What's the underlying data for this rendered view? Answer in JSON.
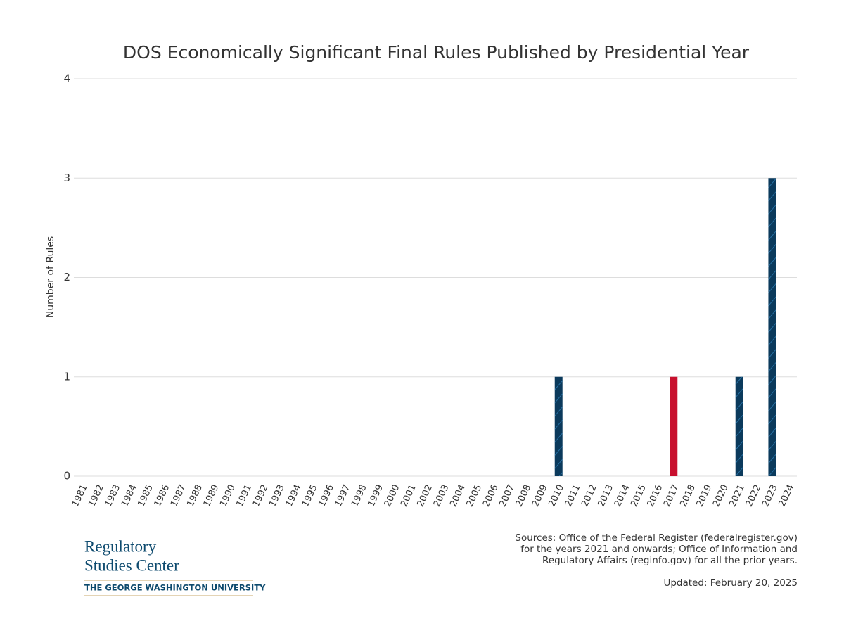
{
  "chart_data": {
    "type": "bar",
    "title": "DOS Economically Significant Final Rules Published by Presidential Year",
    "y_label": "Number of Rules",
    "categories": [
      "1981",
      "1982",
      "1983",
      "1984",
      "1985",
      "1986",
      "1987",
      "1988",
      "1989",
      "1990",
      "1991",
      "1992",
      "1993",
      "1994",
      "1995",
      "1996",
      "1997",
      "1998",
      "1999",
      "2000",
      "2001",
      "2002",
      "2003",
      "2004",
      "2005",
      "2006",
      "2007",
      "2008",
      "2009",
      "2010",
      "2011",
      "2012",
      "2013",
      "2014",
      "2015",
      "2016",
      "2017",
      "2018",
      "2019",
      "2020",
      "2021",
      "2022",
      "2023",
      "2024"
    ],
    "values": [
      0,
      0,
      0,
      0,
      0,
      0,
      0,
      0,
      0,
      0,
      0,
      0,
      0,
      0,
      0,
      0,
      0,
      0,
      0,
      0,
      0,
      0,
      0,
      0,
      0,
      0,
      0,
      0,
      0,
      1,
      0,
      0,
      0,
      0,
      0,
      0,
      1,
      0,
      0,
      0,
      1,
      0,
      3,
      0
    ],
    "colors": [
      "#0b3a5c",
      "#0b3a5c",
      "#0b3a5c",
      "#0b3a5c",
      "#c8102e",
      "#c8102e",
      "#c8102e",
      "#c8102e",
      "#0b3a5c",
      "#0b3a5c",
      "#0b3a5c",
      "#0b3a5c",
      "#0b3a5c",
      "#0b3a5c",
      "#0b3a5c",
      "#0b3a5c",
      "#0b3a5c",
      "#0b3a5c",
      "#0b3a5c",
      "#0b3a5c",
      "#c8102e",
      "#c8102e",
      "#c8102e",
      "#c8102e",
      "#c8102e",
      "#c8102e",
      "#c8102e",
      "#c8102e",
      "#0b3a5c",
      "#0b3a5c",
      "#0b3a5c",
      "#0b3a5c",
      "#0b3a5c",
      "#0b3a5c",
      "#0b3a5c",
      "#0b3a5c",
      "#c8102e",
      "#c8102e",
      "#c8102e",
      "#c8102e",
      "#0b3a5c",
      "#0b3a5c",
      "#0b3a5c",
      "#0b3a5c"
    ],
    "hatched": [
      true,
      true,
      true,
      true,
      false,
      false,
      false,
      false,
      true,
      true,
      true,
      true,
      true,
      true,
      true,
      true,
      true,
      true,
      true,
      true,
      false,
      false,
      false,
      false,
      false,
      false,
      false,
      false,
      true,
      true,
      true,
      true,
      true,
      true,
      true,
      true,
      false,
      false,
      false,
      false,
      true,
      true,
      true,
      true
    ],
    "ylim": [
      0,
      4
    ],
    "yticks": [
      0,
      1,
      2,
      3,
      4
    ],
    "grid": true
  },
  "footer": {
    "source": [
      "Sources: Office of the Federal Register (federalregister.gov)",
      "for the years 2021 and onwards; Office of Information and",
      "Regulatory Affairs (reginfo.gov) for all the prior years."
    ],
    "updated": "Updated: February 20, 2025",
    "logo": [
      "Regulatory",
      "Studies Center",
      "THE GEORGE WASHINGTON UNIVERSITY"
    ]
  }
}
